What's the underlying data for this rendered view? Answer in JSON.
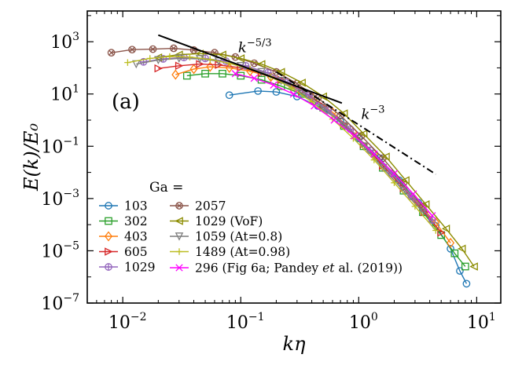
{
  "chart_data": {
    "type": "line",
    "xscale": "log",
    "yscale": "log",
    "xlim": [
      0.005,
      16
    ],
    "ylim": [
      1e-07,
      15000
    ],
    "xlabel": "kη",
    "ylabel": "E(k)/E₀",
    "panel_label": "(a)",
    "x_ticks": [
      {
        "value": 0.01,
        "base": "10",
        "exp": "−2"
      },
      {
        "value": 0.1,
        "base": "10",
        "exp": "−1"
      },
      {
        "value": 1,
        "base": "10",
        "exp": "0"
      },
      {
        "value": 10,
        "base": "10",
        "exp": "1"
      }
    ],
    "y_ticks": [
      {
        "value": 1e-07,
        "base": "10",
        "exp": "−7"
      },
      {
        "value": 1e-05,
        "base": "10",
        "exp": "−5"
      },
      {
        "value": 0.001,
        "base": "10",
        "exp": "−3"
      },
      {
        "value": 0.1,
        "base": "10",
        "exp": "−1"
      },
      {
        "value": 10,
        "base": "10",
        "exp": "1"
      },
      {
        "value": 1000,
        "base": "10",
        "exp": "3"
      }
    ],
    "reference_lines": [
      {
        "name": "k^-5/3",
        "label_base": "k",
        "label_exp": "−5/3",
        "style": "solid",
        "x": [
          0.02,
          0.72
        ],
        "y": [
          1800,
          4.5
        ],
        "label_at": [
          0.095,
          400
        ]
      },
      {
        "name": "k^-3",
        "label_base": "k",
        "label_exp": "−3",
        "style": "dashdot",
        "x": [
          0.2,
          4.5
        ],
        "y": [
          70,
          0.0085
        ],
        "label_at": [
          1.05,
          1.1
        ]
      }
    ],
    "legend": {
      "title": "Ga =",
      "columns": [
        [
          "103",
          "302",
          "403",
          "605",
          "1029"
        ],
        [
          "2057",
          "1029 (VoF)",
          "1059 (At=0.8)",
          "1489 (At=0.98)"
        ]
      ],
      "extra_label": {
        "prefix": "296 (Fig 6a; Pandey ",
        "italic": "et",
        "suffix": " al. (2019))"
      }
    },
    "series": [
      {
        "name": "103",
        "color": "#1f77b4",
        "marker": "circle",
        "x": [
          0.08,
          0.14,
          0.2,
          0.3,
          0.45,
          0.7,
          1.0,
          1.5,
          2.2,
          3.2,
          4.5,
          6.0,
          7.2,
          8.2
        ],
        "y": [
          9,
          13,
          12,
          8,
          3.5,
          0.9,
          0.2,
          0.035,
          0.005,
          0.0007,
          9e-05,
          1.2e-05,
          1.7e-06,
          5.5e-07
        ]
      },
      {
        "name": "302",
        "color": "#2ca02c",
        "marker": "square",
        "x": [
          0.035,
          0.05,
          0.07,
          0.1,
          0.15,
          0.22,
          0.33,
          0.5,
          0.75,
          1.1,
          1.6,
          2.4,
          3.5,
          5.0,
          6.5,
          8.0
        ],
        "y": [
          50,
          60,
          60,
          50,
          35,
          20,
          10,
          3,
          0.6,
          0.1,
          0.015,
          0.002,
          0.0003,
          4e-05,
          8e-06,
          2.5e-06
        ]
      },
      {
        "name": "403",
        "color": "#ff7f0e",
        "marker": "diamond",
        "x": [
          0.028,
          0.04,
          0.055,
          0.08,
          0.12,
          0.18,
          0.27,
          0.4,
          0.6,
          0.9,
          1.35,
          2.0,
          3.0,
          4.5,
          6.0
        ],
        "y": [
          55,
          90,
          110,
          100,
          75,
          45,
          22,
          8,
          2,
          0.35,
          0.05,
          0.007,
          0.0009,
          0.00012,
          2e-05
        ]
      },
      {
        "name": "605",
        "color": "#d62728",
        "marker": "triangle-right",
        "x": [
          0.02,
          0.03,
          0.045,
          0.065,
          0.1,
          0.15,
          0.22,
          0.33,
          0.5,
          0.75,
          1.1,
          1.6,
          2.4,
          3.6,
          5.0
        ],
        "y": [
          95,
          120,
          140,
          130,
          100,
          65,
          35,
          13,
          3.5,
          0.7,
          0.12,
          0.018,
          0.0025,
          0.0003,
          5e-05
        ]
      },
      {
        "name": "1029",
        "color": "#9467bd",
        "marker": "plus-circle",
        "x": [
          0.015,
          0.022,
          0.033,
          0.05,
          0.075,
          0.11,
          0.17,
          0.25,
          0.38,
          0.55,
          0.85,
          1.25,
          1.9,
          2.8,
          4.2
        ],
        "y": [
          170,
          220,
          250,
          230,
          180,
          120,
          65,
          28,
          9,
          2.4,
          0.45,
          0.07,
          0.009,
          0.0012,
          0.00015
        ]
      },
      {
        "name": "2057",
        "color": "#8c564b",
        "marker": "x-circle",
        "x": [
          0.008,
          0.012,
          0.018,
          0.027,
          0.04,
          0.06,
          0.09,
          0.13,
          0.2,
          0.3,
          0.45,
          0.7,
          1.05,
          1.6,
          2.4,
          3.5
        ],
        "y": [
          380,
          500,
          520,
          560,
          480,
          380,
          260,
          150,
          70,
          25,
          7,
          1.5,
          0.25,
          0.035,
          0.004,
          0.0005
        ]
      },
      {
        "name": "1029 (VoF)",
        "color": "#8c8c00",
        "marker": "triangle-left",
        "x": [
          0.02,
          0.03,
          0.045,
          0.07,
          0.1,
          0.15,
          0.22,
          0.33,
          0.5,
          0.75,
          1.1,
          1.7,
          2.5,
          3.7,
          5.5,
          7.5,
          9.5
        ],
        "y": [
          250,
          320,
          350,
          320,
          230,
          140,
          70,
          27,
          8,
          1.8,
          0.3,
          0.04,
          0.005,
          0.0006,
          7e-05,
          1.2e-05,
          2.5e-06
        ]
      },
      {
        "name": "1059 (At=0.8)",
        "color": "#7f7f7f",
        "marker": "triangle-down",
        "x": [
          0.013,
          0.02,
          0.03,
          0.045,
          0.065,
          0.1,
          0.15,
          0.22,
          0.33,
          0.5,
          0.75,
          1.1,
          1.6,
          2.4,
          3.5
        ],
        "y": [
          140,
          200,
          230,
          220,
          180,
          120,
          70,
          32,
          11,
          3,
          0.6,
          0.1,
          0.015,
          0.002,
          0.0003
        ]
      },
      {
        "name": "1489 (At=0.98)",
        "color": "#bcbd22",
        "marker": "plus",
        "x": [
          0.011,
          0.017,
          0.025,
          0.037,
          0.055,
          0.08,
          0.12,
          0.18,
          0.27,
          0.4,
          0.6,
          0.9,
          1.35,
          2.0,
          3.0,
          4.5
        ],
        "y": [
          160,
          230,
          270,
          260,
          210,
          150,
          90,
          45,
          17,
          5,
          1.1,
          0.2,
          0.03,
          0.004,
          0.0005,
          6e-05
        ]
      },
      {
        "name": "296 (Fig 6a; Pandey et al. (2019))",
        "color": "#ff00ff",
        "marker": "x",
        "x": [
          0.09,
          0.13,
          0.19,
          0.28,
          0.42,
          0.62,
          0.92,
          1.35,
          2.0,
          2.9,
          4.2
        ],
        "y": [
          60,
          40,
          22,
          10,
          3.5,
          1,
          0.25,
          0.05,
          0.009,
          0.0015,
          0.00022
        ]
      }
    ]
  }
}
